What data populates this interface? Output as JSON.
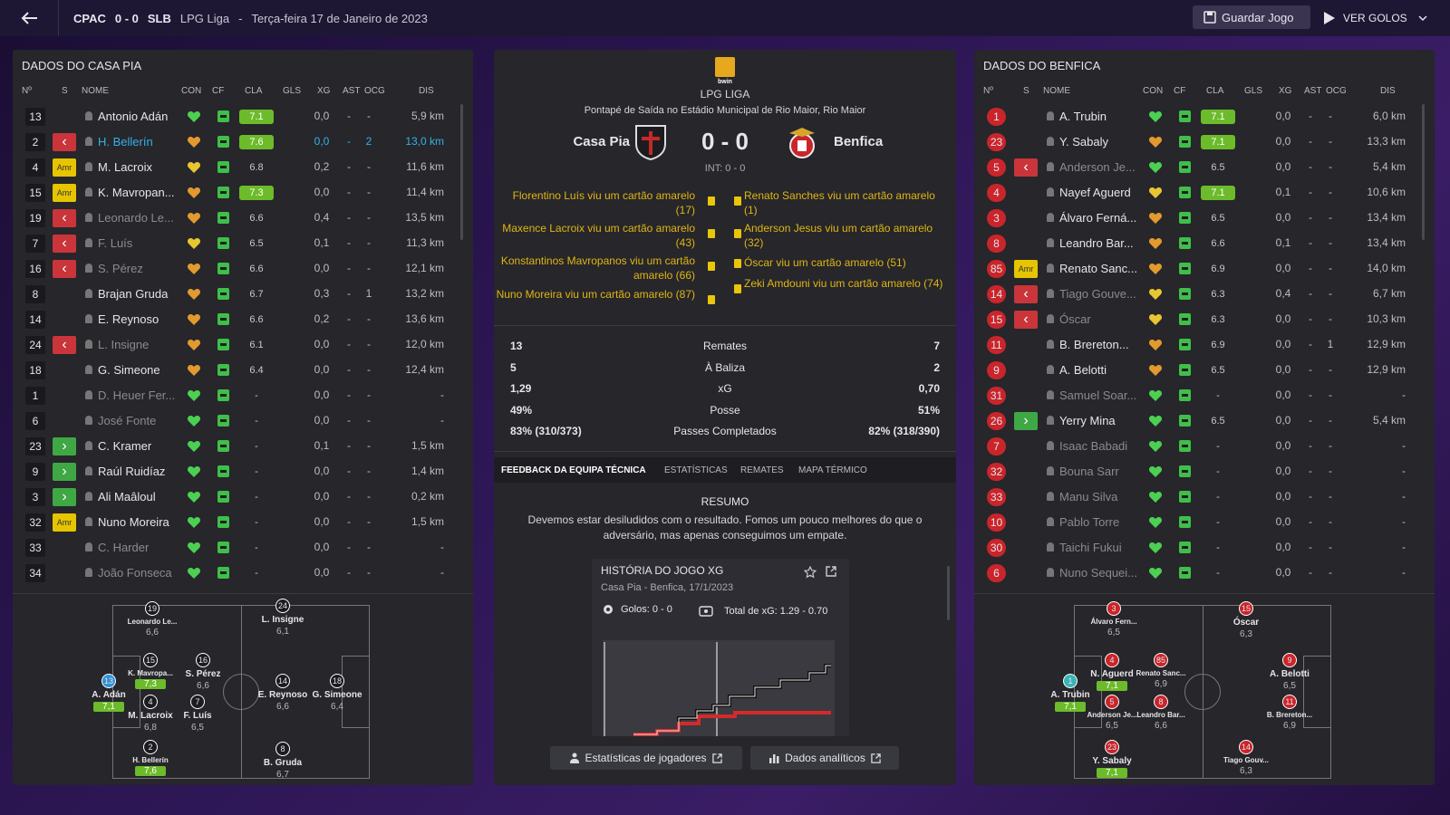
{
  "topbar": {
    "home_abbr": "CPAC",
    "score": "0 - 0",
    "away_abbr": "SLB",
    "league": "LPG Liga",
    "dash": "-",
    "date": "Terça-feira 17 de Janeiro de 2023",
    "save_label": "Guardar Jogo",
    "goals_label": "VER GOLOS"
  },
  "columns": {
    "no": "Nº",
    "s": "S",
    "name": "NOME",
    "con": "CON",
    "cf": "CF",
    "cla": "CLA",
    "gls": "GLS",
    "xg": "XG",
    "ast": "AST",
    "ocg": "OCG",
    "dis": "DIS"
  },
  "left": {
    "title": "DADOS DO CASA PIA",
    "players": [
      {
        "no": "13",
        "status": "",
        "name": "Antonio Adán",
        "cla": "7.1",
        "cla_good": true,
        "xg": "0,0",
        "ast": "-",
        "ocg": "-",
        "dis": "5,9 km",
        "heart": "green",
        "cf": "up"
      },
      {
        "no": "2",
        "status": "off",
        "name": "H. Bellerín",
        "cla": "7.6",
        "cla_good": true,
        "xg": "0,0",
        "ast": "-",
        "ocg": "2",
        "dis": "13,0 km",
        "heart": "orange",
        "cf": "up",
        "highlight": true
      },
      {
        "no": "4",
        "status": "Amr",
        "name": "M. Lacroix",
        "cla": "6.8",
        "cla_good": false,
        "xg": "0,2",
        "ast": "-",
        "ocg": "-",
        "dis": "11,6 km",
        "heart": "yellow",
        "cf": "flat"
      },
      {
        "no": "15",
        "status": "Amr",
        "name": "K. Mavropan...",
        "cla": "7.3",
        "cla_good": true,
        "xg": "0,0",
        "ast": "-",
        "ocg": "-",
        "dis": "11,4 km",
        "heart": "orange",
        "cf": "up"
      },
      {
        "no": "19",
        "status": "off",
        "name": "Leonardo Le...",
        "cla": "6.6",
        "cla_good": false,
        "xg": "0,4",
        "ast": "-",
        "ocg": "-",
        "dis": "13,5 km",
        "heart": "orange",
        "cf": "up",
        "dim": true
      },
      {
        "no": "7",
        "status": "off",
        "name": "F. Luís",
        "cla": "6.5",
        "cla_good": false,
        "xg": "0,1",
        "ast": "-",
        "ocg": "-",
        "dis": "11,3 km",
        "heart": "yellow",
        "cf": "up",
        "dim": true
      },
      {
        "no": "16",
        "status": "off",
        "name": "S. Pérez",
        "cla": "6.6",
        "cla_good": false,
        "xg": "0,0",
        "ast": "-",
        "ocg": "-",
        "dis": "12,1 km",
        "heart": "orange",
        "cf": "up",
        "dim": true
      },
      {
        "no": "8",
        "status": "",
        "name": "Brajan Gruda",
        "cla": "6.7",
        "cla_good": false,
        "xg": "0,3",
        "ast": "-",
        "ocg": "1",
        "dis": "13,2 km",
        "heart": "orange",
        "cf": "flat"
      },
      {
        "no": "14",
        "status": "",
        "name": "E. Reynoso",
        "cla": "6.6",
        "cla_good": false,
        "xg": "0,2",
        "ast": "-",
        "ocg": "-",
        "dis": "13,6 km",
        "heart": "orange",
        "cf": "flat"
      },
      {
        "no": "24",
        "status": "off",
        "name": "L. Insigne",
        "cla": "6.1",
        "cla_good": false,
        "xg": "0,0",
        "ast": "-",
        "ocg": "-",
        "dis": "12,0 km",
        "heart": "orange",
        "cf": "up",
        "dim": true
      },
      {
        "no": "18",
        "status": "",
        "name": "G. Simeone",
        "cla": "6.4",
        "cla_good": false,
        "xg": "0,0",
        "ast": "-",
        "ocg": "-",
        "dis": "12,4 km",
        "heart": "orange",
        "cf": "flat"
      },
      {
        "no": "1",
        "status": "",
        "name": "D. Heuer Fer...",
        "cla": "-",
        "cla_good": false,
        "xg": "0,0",
        "ast": "-",
        "ocg": "-",
        "dis": "-",
        "heart": "green",
        "cf": "flat",
        "dim": true
      },
      {
        "no": "6",
        "status": "",
        "name": "José Fonte",
        "cla": "-",
        "cla_good": false,
        "xg": "0,0",
        "ast": "-",
        "ocg": "-",
        "dis": "-",
        "heart": "green",
        "cf": "flat",
        "dim": true
      },
      {
        "no": "23",
        "status": "on",
        "name": "C. Kramer",
        "cla": "-",
        "cla_good": false,
        "xg": "0,1",
        "ast": "-",
        "ocg": "-",
        "dis": "1,5 km",
        "heart": "green",
        "cf": "flat"
      },
      {
        "no": "9",
        "status": "on",
        "name": "Raúl Ruidíaz",
        "cla": "-",
        "cla_good": false,
        "xg": "0,0",
        "ast": "-",
        "ocg": "-",
        "dis": "1,4 km",
        "heart": "green",
        "cf": "flat"
      },
      {
        "no": "3",
        "status": "on",
        "name": "Ali Maâloul",
        "cla": "-",
        "cla_good": false,
        "xg": "0,0",
        "ast": "-",
        "ocg": "-",
        "dis": "0,2 km",
        "heart": "green",
        "cf": "flat"
      },
      {
        "no": "32",
        "status": "Amr",
        "name": "Nuno Moreira",
        "cla": "-",
        "cla_good": false,
        "xg": "0,0",
        "ast": "-",
        "ocg": "-",
        "dis": "1,5 km",
        "heart": "green",
        "cf": "flat"
      },
      {
        "no": "33",
        "status": "",
        "name": "C. Harder",
        "cla": "-",
        "cla_good": false,
        "xg": "0,0",
        "ast": "-",
        "ocg": "-",
        "dis": "-",
        "heart": "green",
        "cf": "flat",
        "dim": true
      },
      {
        "no": "34",
        "status": "",
        "name": "João Fonseca",
        "cla": "-",
        "cla_good": false,
        "xg": "0,0",
        "ast": "-",
        "ocg": "-",
        "dis": "-",
        "heart": "green",
        "cf": "flat",
        "dim": true
      }
    ],
    "pitch": [
      {
        "no": "19",
        "name": "Leonardo Le...",
        "rating": "6,6",
        "good": false
      },
      {
        "no": "24",
        "name": "L. Insigne",
        "rating": "6,1",
        "good": false
      },
      {
        "no": "15",
        "name": "K. Mavropa...",
        "rating": "7,3",
        "good": true
      },
      {
        "no": "16",
        "name": "S. Pérez",
        "rating": "6,6",
        "good": false
      },
      {
        "no": "13",
        "name": "A. Adán",
        "rating": "7,1",
        "good": true,
        "gk": true
      },
      {
        "no": "4",
        "name": "M. Lacroix",
        "rating": "6,8",
        "good": false
      },
      {
        "no": "7",
        "name": "F. Luís",
        "rating": "6,5",
        "good": false
      },
      {
        "no": "14",
        "name": "E. Reynoso",
        "rating": "6,6",
        "good": false
      },
      {
        "no": "18",
        "name": "G. Simeone",
        "rating": "6,4",
        "good": false
      },
      {
        "no": "2",
        "name": "H. Bellerín",
        "rating": "7,6",
        "good": true
      },
      {
        "no": "8",
        "name": "B. Gruda",
        "rating": "6,7",
        "good": false
      }
    ]
  },
  "center": {
    "comp_badge": "bwin",
    "league": "LPG LIGA",
    "kickoff": "Pontapé de Saída no Estádio Municipal de Rio Maior, Rio Maior",
    "home": "Casa Pia",
    "away": "Benfica",
    "score": "0 - 0",
    "ht": "INT: 0 - 0",
    "events_home": [
      "Florentino Luís viu um cartão amarelo (17)",
      "Maxence Lacroix viu um cartão amarelo (43)",
      "Konstantinos Mavropanos viu um cartão amarelo (66)",
      "Nuno Moreira viu um cartão amarelo (87)"
    ],
    "events_away": [
      "Renato Sanches viu um cartão amarelo (1)",
      "Anderson Jesus viu um cartão amarelo (32)",
      "Óscar viu um cartão amarelo (51)",
      "Zeki Amdouni viu um cartão amarelo (74)"
    ],
    "stats": [
      {
        "home": "13",
        "label": "Remates",
        "away": "7"
      },
      {
        "home": "5",
        "label": "À Baliza",
        "away": "2"
      },
      {
        "home": "1,29",
        "label": "xG",
        "away": "0,70"
      },
      {
        "home": "49%",
        "label": "Posse",
        "away": "51%"
      },
      {
        "home": "83% (310/373)",
        "label": "Passes Completados",
        "away": "82% (318/390)"
      }
    ],
    "tabs": [
      "FEEDBACK DA EQUIPA TÉCNICA",
      "ESTATÍSTICAS",
      "REMATES",
      "MAPA TÉRMICO"
    ],
    "resumo_title": "RESUMO",
    "resumo_text": "Devemos estar desiludidos com o resultado. Fomos um pouco melhores do que o adversário, mas apenas conseguimos um empate.",
    "xg_card": {
      "title": "HISTÓRIA DO JOGO XG",
      "subtitle": "Casa Pia - Benfica, 17/1/2023",
      "goals": "Golos: 0 - 0",
      "total": "Total de xG: 1.29 - 0.70"
    },
    "btn_players": "Estatísticas de jogadores",
    "btn_analytics": "Dados analíticos"
  },
  "right": {
    "title": "DADOS DO BENFICA",
    "players": [
      {
        "no": "1",
        "status": "",
        "name": "A. Trubin",
        "cla": "7.1",
        "cla_good": true,
        "xg": "0,0",
        "ast": "-",
        "ocg": "-",
        "dis": "6,0 km",
        "heart": "green",
        "cf": "up"
      },
      {
        "no": "23",
        "status": "",
        "name": "Y. Sabaly",
        "cla": "7.1",
        "cla_good": true,
        "xg": "0,0",
        "ast": "-",
        "ocg": "-",
        "dis": "13,3 km",
        "heart": "orange",
        "cf": "up"
      },
      {
        "no": "5",
        "status": "off",
        "name": "Anderson Je...",
        "cla": "6.5",
        "cla_good": false,
        "xg": "0,0",
        "ast": "-",
        "ocg": "-",
        "dis": "5,4 km",
        "heart": "green",
        "cf": "flat",
        "dim": true
      },
      {
        "no": "4",
        "status": "",
        "name": "Nayef Aguerd",
        "cla": "7.1",
        "cla_good": true,
        "xg": "0,1",
        "ast": "-",
        "ocg": "-",
        "dis": "10,6 km",
        "heart": "yellow",
        "cf": "flat"
      },
      {
        "no": "3",
        "status": "",
        "name": "Álvaro Ferná...",
        "cla": "6.5",
        "cla_good": false,
        "xg": "0,0",
        "ast": "-",
        "ocg": "-",
        "dis": "13,4 km",
        "heart": "orange",
        "cf": "up"
      },
      {
        "no": "8",
        "status": "",
        "name": "Leandro Bar...",
        "cla": "6.6",
        "cla_good": false,
        "xg": "0,1",
        "ast": "-",
        "ocg": "-",
        "dis": "13,4 km",
        "heart": "orange",
        "cf": "up"
      },
      {
        "no": "85",
        "status": "Amr",
        "name": "Renato Sanc...",
        "cla": "6.9",
        "cla_good": false,
        "xg": "0,0",
        "ast": "-",
        "ocg": "-",
        "dis": "14,0 km",
        "heart": "orange",
        "cf": "up"
      },
      {
        "no": "14",
        "status": "off",
        "name": "Tiago Gouve...",
        "cla": "6.3",
        "cla_good": false,
        "xg": "0,4",
        "ast": "-",
        "ocg": "-",
        "dis": "6,7 km",
        "heart": "yellow",
        "cf": "up",
        "dim": true
      },
      {
        "no": "15",
        "status": "off",
        "name": "Óscar",
        "cla": "6.3",
        "cla_good": false,
        "xg": "0,0",
        "ast": "-",
        "ocg": "-",
        "dis": "10,3 km",
        "heart": "yellow",
        "cf": "flat",
        "dim": true
      },
      {
        "no": "11",
        "status": "",
        "name": "B. Brereton...",
        "cla": "6.9",
        "cla_good": false,
        "xg": "0,0",
        "ast": "-",
        "ocg": "1",
        "dis": "12,9 km",
        "heart": "orange",
        "cf": "up"
      },
      {
        "no": "9",
        "status": "",
        "name": "A. Belotti",
        "cla": "6.5",
        "cla_good": false,
        "xg": "0,0",
        "ast": "-",
        "ocg": "-",
        "dis": "12,9 km",
        "heart": "orange",
        "cf": "up"
      },
      {
        "no": "31",
        "status": "",
        "name": "Samuel Soar...",
        "cla": "-",
        "cla_good": false,
        "xg": "0,0",
        "ast": "-",
        "ocg": "-",
        "dis": "-",
        "heart": "green",
        "cf": "flat",
        "dim": true
      },
      {
        "no": "26",
        "status": "on",
        "name": "Yerry Mina",
        "cla": "6.5",
        "cla_good": false,
        "xg": "0,0",
        "ast": "-",
        "ocg": "-",
        "dis": "5,4 km",
        "heart": "green",
        "cf": "flat"
      },
      {
        "no": "7",
        "status": "",
        "name": "Isaac Babadi",
        "cla": "-",
        "cla_good": false,
        "xg": "0,0",
        "ast": "-",
        "ocg": "-",
        "dis": "-",
        "heart": "green",
        "cf": "flat",
        "dim": true
      },
      {
        "no": "32",
        "status": "",
        "name": "Bouna Sarr",
        "cla": "-",
        "cla_good": false,
        "xg": "0,0",
        "ast": "-",
        "ocg": "-",
        "dis": "-",
        "heart": "green",
        "cf": "flat",
        "dim": true
      },
      {
        "no": "33",
        "status": "",
        "name": "Manu Silva",
        "cla": "-",
        "cla_good": false,
        "xg": "0,0",
        "ast": "-",
        "ocg": "-",
        "dis": "-",
        "heart": "green",
        "cf": "flat",
        "dim": true
      },
      {
        "no": "10",
        "status": "",
        "name": "Pablo Torre",
        "cla": "-",
        "cla_good": false,
        "xg": "0,0",
        "ast": "-",
        "ocg": "-",
        "dis": "-",
        "heart": "green",
        "cf": "flat",
        "dim": true
      },
      {
        "no": "30",
        "status": "",
        "name": "Taichi Fukui",
        "cla": "-",
        "cla_good": false,
        "xg": "0,0",
        "ast": "-",
        "ocg": "-",
        "dis": "-",
        "heart": "green",
        "cf": "flat",
        "dim": true
      },
      {
        "no": "6",
        "status": "",
        "name": "Nuno Sequei...",
        "cla": "-",
        "cla_good": false,
        "xg": "0,0",
        "ast": "-",
        "ocg": "-",
        "dis": "-",
        "heart": "green",
        "cf": "flat",
        "dim": true
      }
    ],
    "pitch": [
      {
        "no": "3",
        "name": "Álvaro Fern...",
        "rating": "6,5",
        "good": false
      },
      {
        "no": "15",
        "name": "Óscar",
        "rating": "6,3",
        "good": false
      },
      {
        "no": "4",
        "name": "N. Aguerd",
        "rating": "7,1",
        "good": true
      },
      {
        "no": "85",
        "name": "Renato Sanc...",
        "rating": "6,9",
        "good": false
      },
      {
        "no": "1",
        "name": "A. Trubin",
        "rating": "7,1",
        "good": true,
        "gk": true
      },
      {
        "no": "9",
        "name": "A. Belotti",
        "rating": "6,5",
        "good": false
      },
      {
        "no": "5",
        "name": "Anderson Je...",
        "rating": "6,5",
        "good": false
      },
      {
        "no": "8",
        "name": "Leandro Bar...",
        "rating": "6,6",
        "good": false
      },
      {
        "no": "11",
        "name": "B. Brereton...",
        "rating": "6,9",
        "good": false
      },
      {
        "no": "23",
        "name": "Y. Sabaly",
        "rating": "7,1",
        "good": true
      },
      {
        "no": "14",
        "name": "Tiago Gouv...",
        "rating": "6,3",
        "good": false
      }
    ]
  },
  "colors": {
    "accent_green": "#6cbb2a",
    "sub_off": "#c9353a",
    "sub_on": "#3fa845",
    "yellow_card": "#e9c60a",
    "benfica_red": "#c9252b"
  }
}
